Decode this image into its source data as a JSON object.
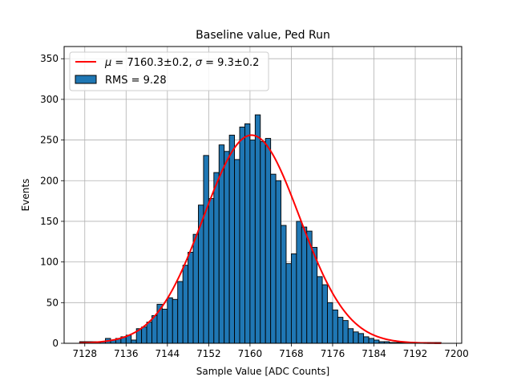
{
  "chart_data": {
    "type": "bar",
    "title": "Baseline value, Ped Run",
    "xlabel": "Sample Value [ADC Counts]",
    "ylabel": "Events",
    "xlim": [
      7124,
      7201
    ],
    "ylim": [
      0,
      365
    ],
    "xticks": [
      7128,
      7136,
      7144,
      7152,
      7160,
      7168,
      7176,
      7184,
      7192,
      7200
    ],
    "yticks": [
      0,
      50,
      100,
      150,
      200,
      250,
      300,
      350
    ],
    "grid": true,
    "legend_position": "top-left",
    "bin_width": 1,
    "bin_left_edges": [
      7127,
      7128,
      7129,
      7130,
      7131,
      7132,
      7133,
      7134,
      7135,
      7136,
      7137,
      7138,
      7139,
      7140,
      7141,
      7142,
      7143,
      7144,
      7145,
      7146,
      7147,
      7148,
      7149,
      7150,
      7151,
      7152,
      7153,
      7154,
      7155,
      7156,
      7157,
      7158,
      7159,
      7160,
      7161,
      7162,
      7163,
      7164,
      7165,
      7166,
      7167,
      7168,
      7169,
      7170,
      7171,
      7172,
      7173,
      7174,
      7175,
      7176,
      7177,
      7178,
      7179,
      7180,
      7181,
      7182,
      7183,
      7184,
      7185,
      7186,
      7187,
      7188,
      7189,
      7190,
      7191,
      7192,
      7193,
      7194,
      7195,
      7196
    ],
    "series": [
      {
        "name": "RMS = 9.28",
        "kind": "histogram",
        "color": "#1f77b4",
        "edgecolor": "#000000",
        "values": [
          2,
          2,
          2,
          2,
          2,
          6,
          4,
          6,
          8,
          10,
          4,
          18,
          20,
          26,
          34,
          48,
          42,
          56,
          54,
          76,
          96,
          112,
          134,
          170,
          231,
          178,
          210,
          244,
          236,
          256,
          226,
          266,
          270,
          250,
          281,
          248,
          252,
          208,
          200,
          145,
          98,
          110,
          150,
          143,
          138,
          118,
          82,
          72,
          50,
          41,
          32,
          28,
          18,
          14,
          12,
          8,
          6,
          4,
          2,
          2,
          1,
          1,
          1,
          1,
          1,
          1,
          1,
          1,
          1,
          1
        ]
      },
      {
        "name": "$\\mu = 7160.3{\\pm}0.2$, $\\sigma = 9.3{\\pm}0.2$",
        "kind": "gaussian-fit",
        "color": "#ff0000",
        "mu": 7160.3,
        "sigma": 9.3,
        "amplitude": 256,
        "x_range": [
          7127,
          7197
        ]
      }
    ],
    "legend": {
      "fit_label_parts": {
        "mu_symbol": "μ",
        "mu_text": " = 7160.3±0.2, ",
        "sigma_symbol": "σ",
        "sigma_text": " = 9.3±0.2"
      },
      "hist_label": "RMS = 9.28"
    }
  }
}
